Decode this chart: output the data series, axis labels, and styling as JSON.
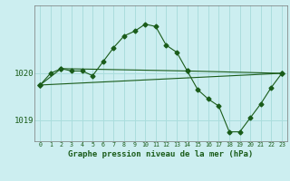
{
  "title": "Graphe pression niveau de la mer (hPa)",
  "bg_color": "#cceef0",
  "grid_color": "#aadddd",
  "line_color": "#1a5c1a",
  "text_color": "#1a5c1a",
  "xlim": [
    -0.5,
    23.5
  ],
  "ylim": [
    1018.55,
    1021.45
  ],
  "yticks": [
    1019,
    1020
  ],
  "series1": {
    "x": [
      0,
      1,
      2,
      3,
      4,
      5,
      6,
      7,
      8,
      9,
      10,
      11,
      12,
      13,
      14,
      15,
      16,
      17,
      18,
      19,
      20,
      21,
      22,
      23
    ],
    "y": [
      1019.75,
      1020.0,
      1020.1,
      1020.05,
      1020.05,
      1019.95,
      1020.25,
      1020.55,
      1020.8,
      1020.9,
      1021.05,
      1021.0,
      1020.6,
      1020.45,
      1020.05,
      1019.65,
      1019.45,
      1019.3,
      1018.75,
      1018.75,
      1019.05,
      1019.35,
      1019.7,
      1020.0
    ]
  },
  "series2": {
    "x": [
      0,
      2,
      14,
      23
    ],
    "y": [
      1019.75,
      1020.1,
      1020.05,
      1020.0
    ]
  },
  "series3": {
    "x": [
      0,
      23
    ],
    "y": [
      1019.75,
      1020.0
    ]
  }
}
